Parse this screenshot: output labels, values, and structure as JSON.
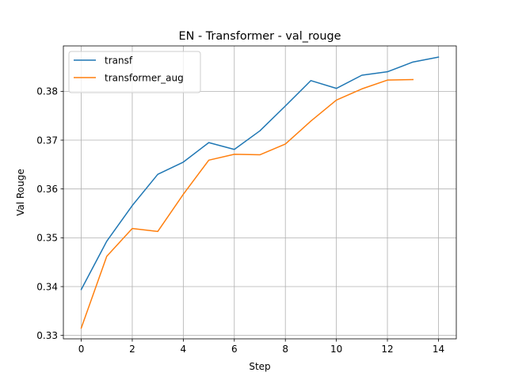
{
  "chart_data": {
    "type": "line",
    "title": "EN - Transformer - val_rouge",
    "xlabel": "Step",
    "ylabel": "Val Rouge",
    "xlim": [
      -0.7,
      14.7
    ],
    "ylim": [
      0.3293,
      0.3893
    ],
    "x_ticks": [
      0,
      2,
      4,
      6,
      8,
      10,
      12,
      14
    ],
    "y_ticks": [
      0.33,
      0.34,
      0.35,
      0.36,
      0.37,
      0.38
    ],
    "grid": true,
    "legend_position": "top-left",
    "series": [
      {
        "name": "transf",
        "color": "#1f77b4",
        "x": [
          0,
          1,
          2,
          3,
          4,
          5,
          6,
          7,
          8,
          9,
          10,
          11,
          12,
          13,
          14
        ],
        "y": [
          0.3394,
          0.3493,
          0.3566,
          0.363,
          0.3655,
          0.3695,
          0.3681,
          0.3719,
          0.377,
          0.3822,
          0.3806,
          0.3833,
          0.384,
          0.386,
          0.387
        ]
      },
      {
        "name": "transformer_aug",
        "color": "#ff7f0e",
        "x": [
          0,
          1,
          2,
          3,
          4,
          5,
          6,
          7,
          8,
          9,
          10,
          11,
          12,
          13
        ],
        "y": [
          0.3315,
          0.3462,
          0.3519,
          0.3513,
          0.3589,
          0.3659,
          0.3671,
          0.367,
          0.3692,
          0.3739,
          0.3782,
          0.3805,
          0.3823,
          0.3824
        ]
      }
    ]
  }
}
